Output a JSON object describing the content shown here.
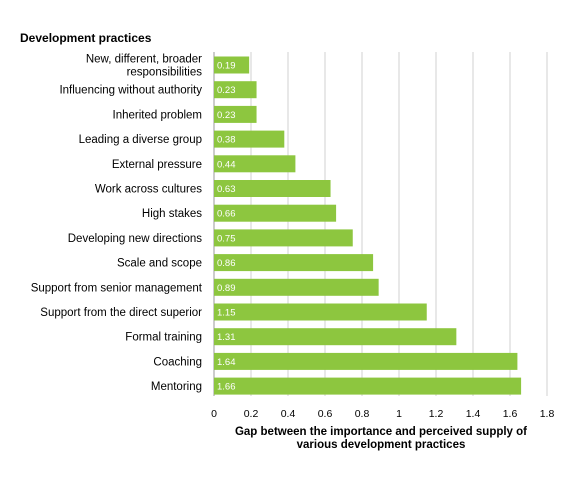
{
  "chart_data": {
    "type": "bar",
    "orientation": "horizontal",
    "category_axis_title": "Development practices",
    "xlabel_lines": [
      "Gap between the importance and perceived supply of",
      "various development practices"
    ],
    "xlim": [
      0,
      1.8
    ],
    "xticks": [
      0,
      0.2,
      0.4,
      0.6,
      0.8,
      1,
      1.2,
      1.4,
      1.6,
      1.8
    ],
    "grid": "vertical",
    "bar_color": "#8dc63f",
    "categories": [
      [
        "New, different, broader",
        "responsibilities"
      ],
      [
        "Influencing without authority"
      ],
      [
        "Inherited problem"
      ],
      [
        "Leading a diverse group"
      ],
      [
        "External pressure"
      ],
      [
        "Work across cultures"
      ],
      [
        "High stakes"
      ],
      [
        "Developing new directions"
      ],
      [
        "Scale and scope"
      ],
      [
        "Support from senior management"
      ],
      [
        "Support from the direct superior"
      ],
      [
        "Formal training"
      ],
      [
        "Coaching"
      ],
      [
        "Mentoring"
      ]
    ],
    "values": [
      0.19,
      0.23,
      0.23,
      0.38,
      0.44,
      0.63,
      0.66,
      0.75,
      0.86,
      0.89,
      1.15,
      1.31,
      1.64,
      1.66
    ],
    "value_labels": [
      "0.19",
      "0.23",
      "0.23",
      "0.38",
      "0.44",
      "0.63",
      "0.66",
      "0.75",
      "0.86",
      "0.89",
      "1.15",
      "1.31",
      "1.64",
      "1.66"
    ]
  }
}
